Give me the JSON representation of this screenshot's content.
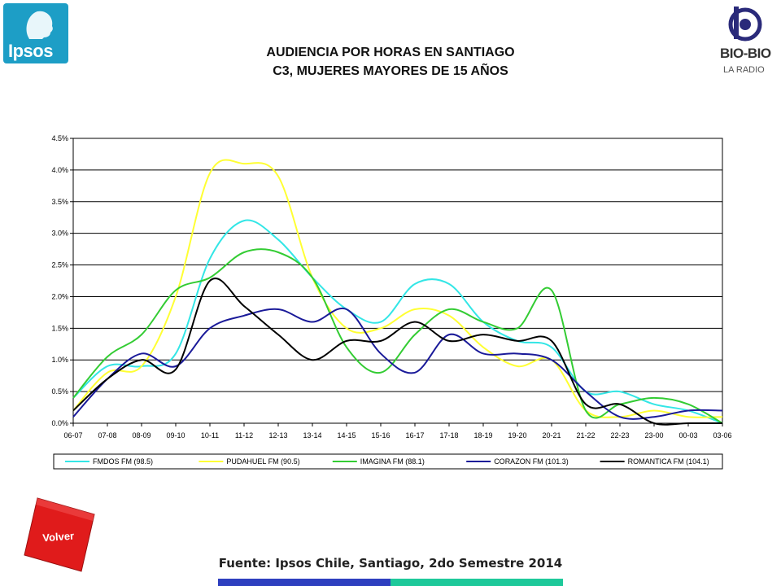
{
  "header": {
    "logo_left_text": "Ipsos",
    "logo_right_name": "BIO-BIO",
    "logo_right_sub": "LA RADIO",
    "title_line1": "AUDIENCIA POR HORAS EN SANTIAGO",
    "title_line2": "C3, MUJERES MAYORES DE 15 AÑOS"
  },
  "chart_data": {
    "type": "line",
    "categories": [
      "06-07",
      "07-08",
      "08-09",
      "09-10",
      "10-11",
      "11-12",
      "12-13",
      "13-14",
      "14-15",
      "15-16",
      "16-17",
      "17-18",
      "18-19",
      "19-20",
      "20-21",
      "21-22",
      "22-23",
      "23-00",
      "00-03",
      "03-06"
    ],
    "y_ticks": [
      "0.0%",
      "0.5%",
      "1.0%",
      "1.5%",
      "2.0%",
      "2.5%",
      "3.0%",
      "3.5%",
      "4.0%",
      "4.5%"
    ],
    "ylim": [
      0,
      4.5
    ],
    "grid": true,
    "legend_position": "bottom",
    "series": [
      {
        "name": "FMDOS FM (98.5)",
        "color": "#33e6e6",
        "values": [
          0.4,
          0.9,
          0.9,
          1.1,
          2.6,
          3.2,
          2.9,
          2.3,
          1.8,
          1.6,
          2.2,
          2.2,
          1.6,
          1.3,
          1.2,
          0.5,
          0.5,
          0.3,
          0.2,
          0.0
        ]
      },
      {
        "name": "PUDAHUEL FM (90.5)",
        "color": "#ffff33",
        "values": [
          0.2,
          0.8,
          0.9,
          2.0,
          3.95,
          4.1,
          3.9,
          2.3,
          1.5,
          1.5,
          1.8,
          1.7,
          1.2,
          0.9,
          1.0,
          0.2,
          0.1,
          0.2,
          0.1,
          0.1
        ]
      },
      {
        "name": "IMAGINA FM (88.1)",
        "color": "#33cc33",
        "values": [
          0.4,
          1.05,
          1.4,
          2.1,
          2.3,
          2.7,
          2.7,
          2.3,
          1.2,
          0.8,
          1.4,
          1.8,
          1.6,
          1.5,
          2.1,
          0.2,
          0.3,
          0.4,
          0.3,
          0.0
        ]
      },
      {
        "name": "CORAZON FM (101.3)",
        "color": "#1a1a99",
        "values": [
          0.1,
          0.7,
          1.1,
          0.9,
          1.5,
          1.7,
          1.8,
          1.6,
          1.8,
          1.1,
          0.8,
          1.4,
          1.1,
          1.1,
          1.0,
          0.5,
          0.1,
          0.1,
          0.2,
          0.2
        ]
      },
      {
        "name": "ROMANTICA FM (104.1)",
        "color": "#000000",
        "values": [
          0.2,
          0.7,
          1.0,
          0.85,
          2.25,
          1.85,
          1.4,
          1.0,
          1.3,
          1.3,
          1.6,
          1.3,
          1.4,
          1.3,
          1.3,
          0.3,
          0.3,
          0.0,
          0.0,
          0.0
        ]
      }
    ]
  },
  "volver_label": "Volver",
  "source_text": "Fuente: Ipsos Chile, Santiago, 2do Semestre 2014"
}
